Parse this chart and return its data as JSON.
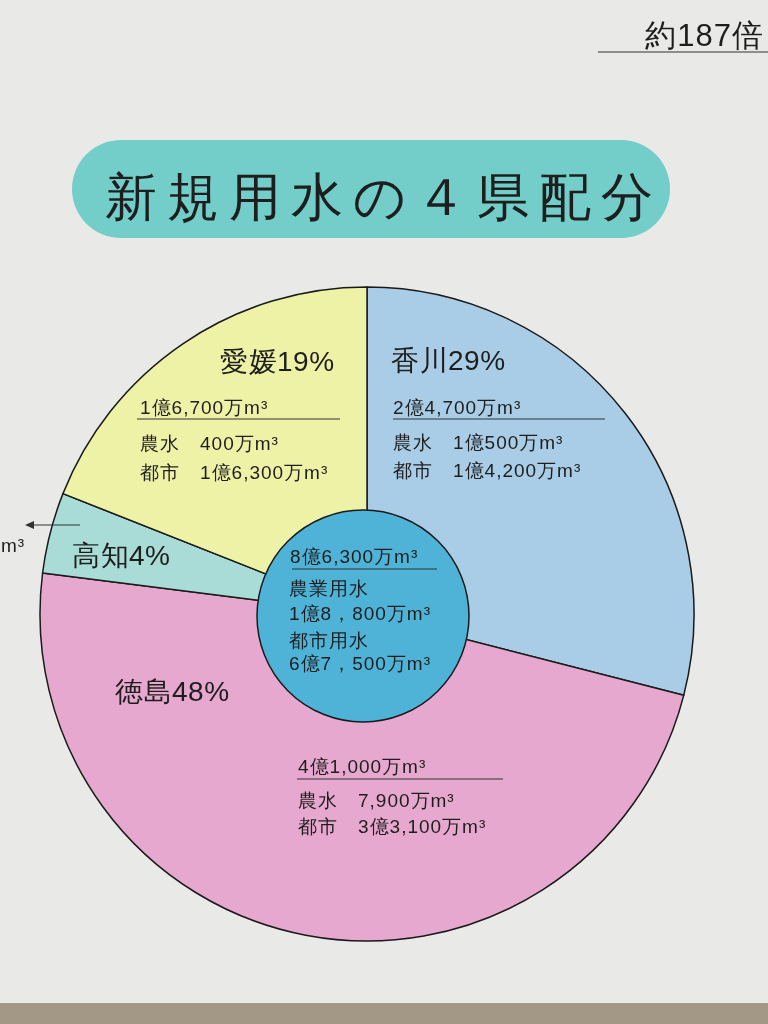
{
  "chart_data": {
    "type": "pie",
    "title": "新規用水の４県配分",
    "categories": [
      "香川",
      "徳島",
      "高知",
      "愛媛"
    ],
    "values": [
      29,
      48,
      4,
      19
    ],
    "colors": [
      "#a9cde6",
      "#e7a8cf",
      "#a9dcd6",
      "#eef2a6"
    ],
    "value_labels": [
      "29%",
      "48%",
      "4%",
      "19%"
    ],
    "annotations": [
      "約187倍",
      "1億6,700万m³",
      "農水　400万m³",
      "都市　1億6,300万m³",
      "2億4,700万m³",
      "農水　1億500万m³",
      "都市　1億4,200万m³",
      "m³",
      "8億6,300万m³",
      "農業用水",
      "1億8，800万m³",
      "都市用水",
      "6億7，500万m³",
      "4億1,000万m³",
      "農水　7,900万m³",
      "都市　3億3,100万m³"
    ]
  }
}
